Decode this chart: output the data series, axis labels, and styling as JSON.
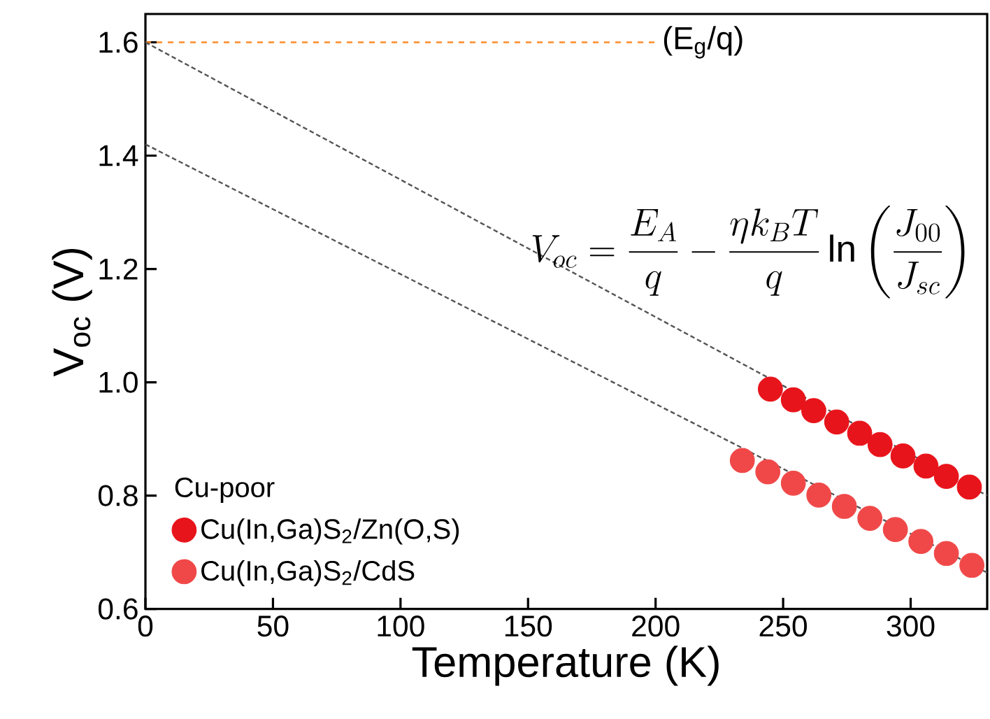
{
  "chart_data": {
    "type": "scatter",
    "xlabel": "Temperature (K)",
    "ylabel": "V$_{oc}$ (V)",
    "legend_title": "Cu-poor",
    "annotations": [
      "V_{oc}=\\frac{E_A}{q}-\\frac{\\eta k_B T}{q}\\ln\\left(\\frac{J_{00}}{J_{sc}}\\right)"
    ],
    "xlim": [
      0,
      330
    ],
    "ylim": [
      0.6,
      1.65
    ],
    "xticks": [
      0,
      50,
      100,
      150,
      200,
      250,
      300
    ],
    "yticks": [
      0.6,
      0.8,
      {
        "value": 1.0,
        "label": "1.0"
      },
      1.2,
      1.4,
      1.6
    ],
    "legend": "bottom left",
    "grid": false,
    "series": [
      {
        "type": "line",
        "color": "#ff8c28",
        "line_style": "dashed",
        "marker": "none",
        "name": "(E$_{g}$/q)",
        "x": [
          0,
          200
        ],
        "values": [
          1.6,
          1.6
        ]
      },
      {
        "type": "line",
        "color": "#555555",
        "line_style": "dotted",
        "marker": "none",
        "x": [
          0,
          330
        ],
        "values": [
          1.6,
          0.8
        ]
      },
      {
        "type": "line",
        "color": "#555555",
        "line_style": "dotted",
        "marker": "none",
        "x": [
          0,
          330
        ],
        "values": [
          1.42,
          0.664
        ]
      },
      {
        "name": "Cu(In,Ga)S$_{2}$/Zn(O,S)",
        "color": "#e8141b",
        "marker": "circle",
        "x": [
          245,
          254,
          262,
          271,
          280,
          288,
          297,
          306,
          314,
          323
        ],
        "values": [
          0.988,
          0.969,
          0.95,
          0.93,
          0.91,
          0.89,
          0.87,
          0.852,
          0.834,
          0.815
        ]
      },
      {
        "name": "Cu(In,Ga)S$_{2}$/CdS",
        "color": "#f04848",
        "marker": "circle",
        "x": [
          234,
          244,
          254,
          264,
          274,
          284,
          294,
          304,
          314,
          324
        ],
        "values": [
          0.862,
          0.842,
          0.822,
          0.801,
          0.781,
          0.76,
          0.74,
          0.719,
          0.698,
          0.677
        ]
      }
    ]
  }
}
